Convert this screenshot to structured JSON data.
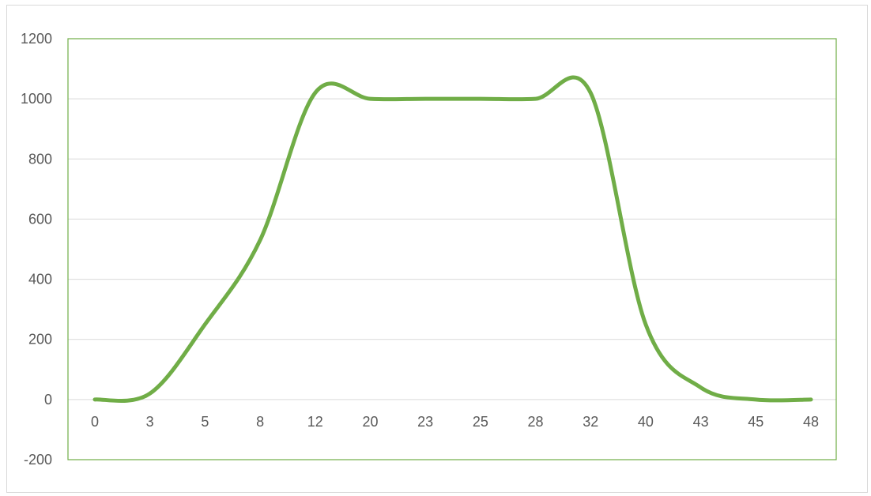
{
  "chart_data": {
    "type": "line",
    "title": "",
    "xlabel": "",
    "ylabel": "",
    "categories": [
      "0",
      "3",
      "5",
      "8",
      "12",
      "20",
      "23",
      "25",
      "28",
      "32",
      "40",
      "43",
      "45",
      "48"
    ],
    "series": [
      {
        "values": [
          0,
          20,
          250,
          530,
          1020,
          1000,
          1000,
          1000,
          1000,
          1020,
          250,
          40,
          0,
          0
        ]
      }
    ],
    "ylim": [
      -200,
      1200
    ],
    "yticks": [
      -200,
      0,
      200,
      400,
      600,
      800,
      1000,
      1200
    ],
    "grid": true,
    "legend": "none",
    "line_color": "#70ad47",
    "plot_border_color": "#70ad47",
    "grid_color": "#d9d9d9"
  }
}
